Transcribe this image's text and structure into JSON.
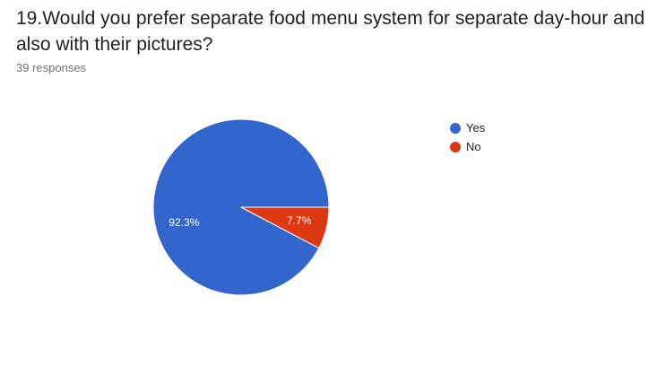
{
  "question": {
    "title": "19.Would you prefer separate food menu system for separate day-hour and also with their pictures?",
    "responses_label": "39 responses"
  },
  "chart_data": {
    "type": "pie",
    "total_responses": 39,
    "slices": [
      {
        "label": "Yes",
        "percent": 92.3,
        "percent_label": "92.3%",
        "color": "#3366cc"
      },
      {
        "label": "No",
        "percent": 7.7,
        "percent_label": "7.7%",
        "color": "#dc3912"
      }
    ],
    "legend_position": "right"
  }
}
